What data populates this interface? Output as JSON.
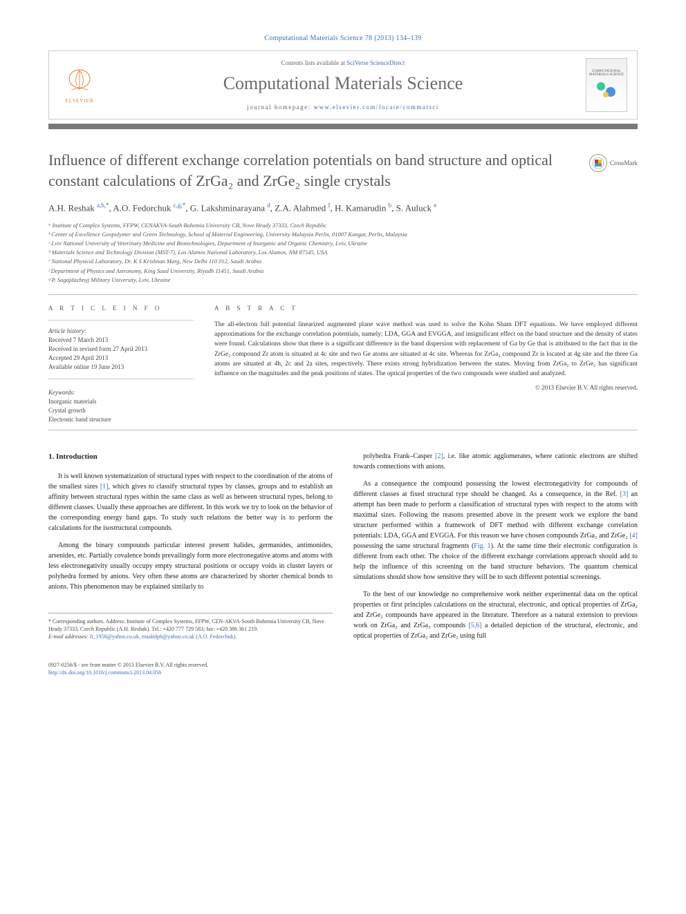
{
  "journal_ref": "Computational Materials Science 78 (2013) 134–139",
  "header": {
    "contents_prefix": "Contents lists available at ",
    "contents_link": "SciVerse ScienceDirect",
    "journal_title": "Computational Materials Science",
    "homepage_prefix": "journal homepage: ",
    "homepage_url": "www.elsevier.com/locate/commatsci",
    "elsevier_label": "ELSEVIER",
    "cover_label": "COMPUTATIONAL MATERIALS SCIENCE"
  },
  "crossmark_label": "CrossMark",
  "title": "Influence of different exchange correlation potentials on band structure and optical constant calculations of ZrGa₂ and ZrGe₂ single crystals",
  "authors_html": "A.H. Reshak <sup>a,b,*</sup>, A.O. Fedorchuk <sup>c,g,*</sup>, G. Lakshminarayana <sup>d</sup>, Z.A. Alahmed <sup>f</sup>, H. Kamarudin <sup>b</sup>, S. Auluck <sup>e</sup>",
  "affiliations": [
    "ᵃ Institute of Complex Systems, FFPW, CENAKVA-South Bohemia University CB, Nove Hrady 37333, Czech Republic",
    "ᵇ Center of Excellence Geopolymer and Green Technology, School of Material Engineering, University Malaysia Perlis, 01007 Kangar, Perlis, Malaysia",
    "ᶜ Lviv National University of Veterinary Medicine and Biotechnologies, Department of Inorganic and Organic Chemistry, Lviv, Ukraine",
    "ᵈ Materials Science and Technology Division (MST-7), Los Alamos National Laboratory, Los Alamos, NM 87545, USA",
    "ᵉ National Physical Laboratory, Dr. K S Krishnan Marg, New Delhi 110 012, Saudi Arabia",
    "ᶠ Department of Physics and Astronomy, King Saud University, Riyadh 11451, Saudi Arabia",
    "ᵍ P. Sagajdachnyj Military University, Lviv, Ukraine"
  ],
  "article_info": {
    "heading": "A R T I C L E   I N F O",
    "history_label": "Article history:",
    "history": [
      "Received 7 March 2013",
      "Received in revised form 27 April 2013",
      "Accepted 29 April 2013",
      "Available online 19 June 2013"
    ],
    "keywords_label": "Keywords:",
    "keywords": [
      "Inorganic materials",
      "Crystal growth",
      "Electronic band structure"
    ]
  },
  "abstract": {
    "heading": "A B S T R A C T",
    "text": "The all-electron full potential linearized augmented plane wave method was used to solve the Kohn Sham DFT equations. We have employed different approximations for the exchange correlation potentials, namely; LDA, GGA and EVGGA, and insignificant effect on the band structure and the density of states were found. Calculations show that there is a significant difference in the band dispersion with replacement of Ga by Ge that is attributed to the fact that in the ZrGe₂ compound Zr atom is situated at 4c site and two Ge atoms are situated at 4c site. Whereas for ZrGa₂ compound Zr is located at 4g site and the three Ga atoms are situated at 4h, 2c and 2a sites, respectively. There exists strong hybridization between the states. Moving from ZrGa₂ to ZrGe₂ has significant influence on the magnitudes and the peak positions of states. The optical properties of the two compounds were studied and analyzed.",
    "copyright": "© 2013 Elsevier B.V. All rights reserved."
  },
  "body": {
    "section_heading": "1. Introduction",
    "left_paragraphs": [
      "It is well known systematization of structural types with respect to the coordination of the atoms of the smallest sizes [1], which gives to classify structural types by classes, groups and to establish an affinity between structural types within the same class as well as between structural types, belong to different classes. Usually these approaches are different. In this work we try to look on the behavior of the corresponding energy band gaps. To study such relations the better way is to perform the calculations for the isostructural compounds.",
      "Among the binary compounds particular interest present halides, germanides, antimonides, arsenides, etc. Partially covalence bonds prevailingly form more electronegative atoms and atoms with less electronegativity usually occupy empty structural positions or occupy voids in cluster layers or polyhedra formed by anions. Very often these atoms are characterized by shorter chemical bonds to anions. This phenomenon may be explained similarly to"
    ],
    "right_paragraphs": [
      "polyhedra Frank–Casper [2], i.e. like atomic agglomerates, where cationic electrons are shifted towards connections with anions.",
      "As a consequence the compound possessing the lowest electronegativity for compounds of different classes at fixed structural type should be changed. As a consequence, in the Ref. [3] an attempt has been made to perform a classification of structural types with respect to the atoms with maximal sizes. Following the reasons presented above in the present work we explore the band structure performed within a framework of DFT method with different exchange correlation potentials: LDA, GGA and EVGGA. For this reason we have chosen compounds ZrGa₂ and ZrGe₂ [4] possessing the same structural fragments (Fig. 1). At the same time their electronic configuration is different from each other. The choice of the different exchange correlations approach should add to help the influence of this screening on the band structure behaviors. The quantum chemical simulations should show how sensitive they will be to such different potential screenings.",
      "To the best of our knowledge no comprehensive work neither experimental data on the optical properties or first principles calculations on the structural, electronic, and optical properties of ZrGa₂ and ZrGe₂ compounds have appeared in the literature. Therefore as a natural extension to previous work on ZrGa₂ and ZrGa₃ compounds [5,6] a detailed depiction of the structural, electronic, and optical properties of ZrGa₂ and ZrGe₂ using full"
    ]
  },
  "footnote": {
    "corresponding": "* Corresponding authors. Address: Institute of Complex Systems, FFPW, CEN-AKVA-South Bohemia University CB, Nove Hrady 37333, Czech Republic (A.H. Reshak). Tel.: +420 777 729 583; fax: +420 386 361 219.",
    "email_label": "E-mail addresses: ",
    "emails": "ft_1958@yahoo.co.uk, maalidph@yahoo.co.uk (A.O. Fedorchuk)."
  },
  "doi": {
    "line1": "0927-0256/$ - see front matter © 2013 Elsevier B.V. All rights reserved.",
    "line2": "http://dx.doi.org/10.1016/j.commatsci.2013.04.056"
  },
  "colors": {
    "link": "#3c6eb4",
    "rule": "#797979",
    "elsevier_orange": "#e67817",
    "title_gray": "#585858"
  }
}
